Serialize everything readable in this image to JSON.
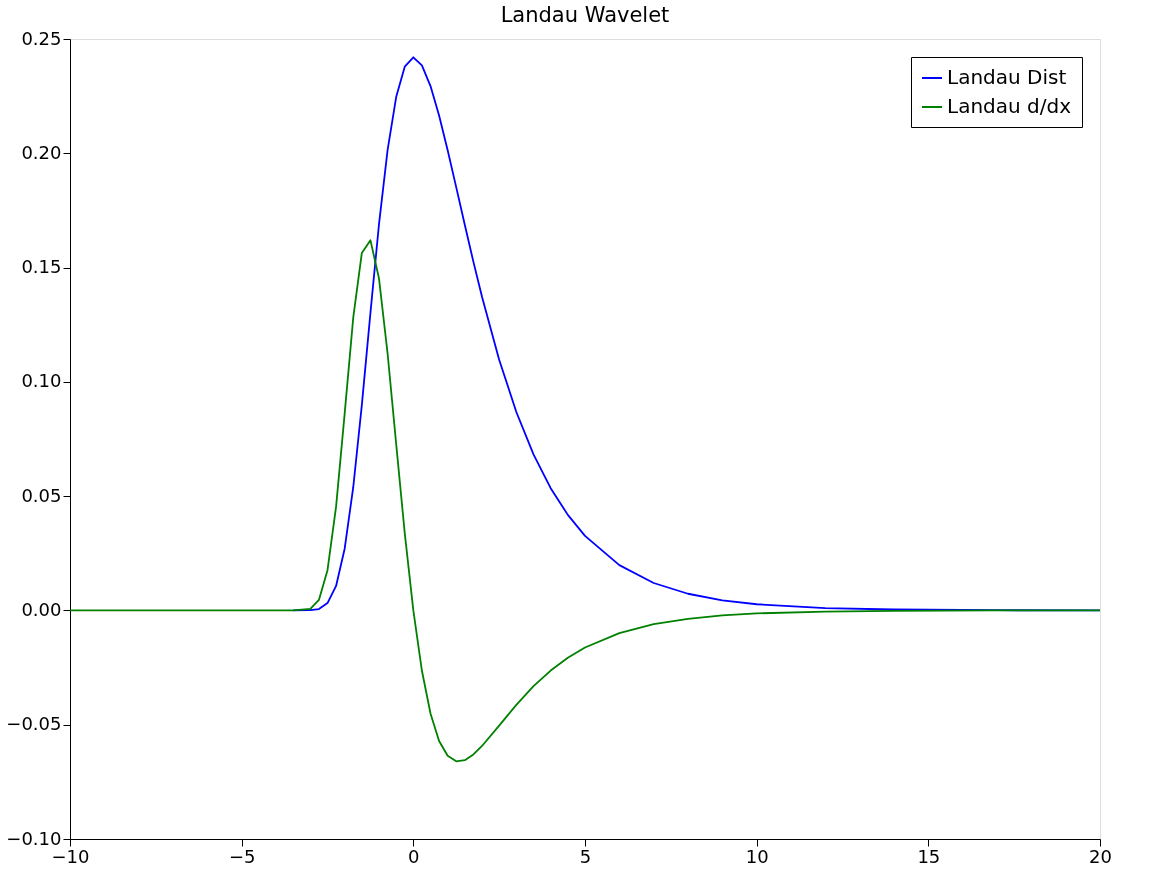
{
  "chart_data": {
    "type": "line",
    "title": "Landau Wavelet",
    "x": [
      -10,
      -5,
      -4,
      -3.5,
      -3,
      -2.75,
      -2.5,
      -2.25,
      -2,
      -1.75,
      -1.5,
      -1.25,
      -1,
      -0.75,
      -0.5,
      -0.25,
      0,
      0.25,
      0.5,
      0.75,
      1,
      1.25,
      1.5,
      1.75,
      2,
      2.5,
      3,
      3.5,
      4,
      4.5,
      5,
      6,
      7,
      8,
      9,
      10,
      12,
      14,
      17,
      20
    ],
    "series": [
      {
        "name": "Landau Dist",
        "color": "#0000ff",
        "values": [
          null,
          null,
          null,
          0,
          0.0001,
          0.0006,
          0.0032,
          0.0107,
          0.027,
          0.0539,
          0.0898,
          0.1301,
          0.169,
          0.2014,
          0.2246,
          0.2379,
          0.242,
          0.2385,
          0.2294,
          0.2165,
          0.2013,
          0.1851,
          0.1686,
          0.1525,
          0.1372,
          0.1097,
          0.0868,
          0.0683,
          0.0535,
          0.0418,
          0.0326,
          0.0198,
          0.012,
          0.0073,
          0.0044,
          0.0027,
          0.001,
          0.0004,
          0.0001,
          0
        ]
      },
      {
        "name": "Landau d/dx",
        "color": "#008000",
        "values": [
          0,
          0,
          0,
          0,
          0.0007,
          0.0046,
          0.0176,
          0.0454,
          0.0861,
          0.1281,
          0.1564,
          0.162,
          0.1452,
          0.1125,
          0.0729,
          0.0338,
          0,
          -0.0264,
          -0.0451,
          -0.0571,
          -0.0636,
          -0.066,
          -0.0655,
          -0.063,
          -0.0593,
          -0.0504,
          -0.0413,
          -0.0331,
          -0.0263,
          -0.0207,
          -0.0162,
          -0.0099,
          -0.006,
          -0.0037,
          -0.0022,
          -0.0013,
          -0.0005,
          -0.0002,
          0,
          0
        ]
      }
    ],
    "xlim": [
      -10,
      20
    ],
    "xticks": [
      {
        "value": -10,
        "label": "−10"
      },
      {
        "value": -5,
        "label": "−5"
      },
      0,
      5,
      10,
      15,
      20
    ],
    "ylim": [
      -0.1,
      0.25
    ],
    "yticks": [
      {
        "value": -0.1,
        "label": "−0.10"
      },
      {
        "value": -0.05,
        "label": "−0.05"
      },
      {
        "value": 0,
        "label": "0.00"
      },
      {
        "value": 0.05,
        "label": "0.05"
      },
      {
        "value": 0.1,
        "label": "0.10"
      },
      {
        "value": 0.15,
        "label": "0.15"
      },
      {
        "value": 0.2,
        "label": "0.20"
      },
      {
        "value": 0.25,
        "label": "0.25"
      }
    ],
    "legend": "top right",
    "grid": false,
    "marker": "none",
    "line_style": "solid"
  }
}
